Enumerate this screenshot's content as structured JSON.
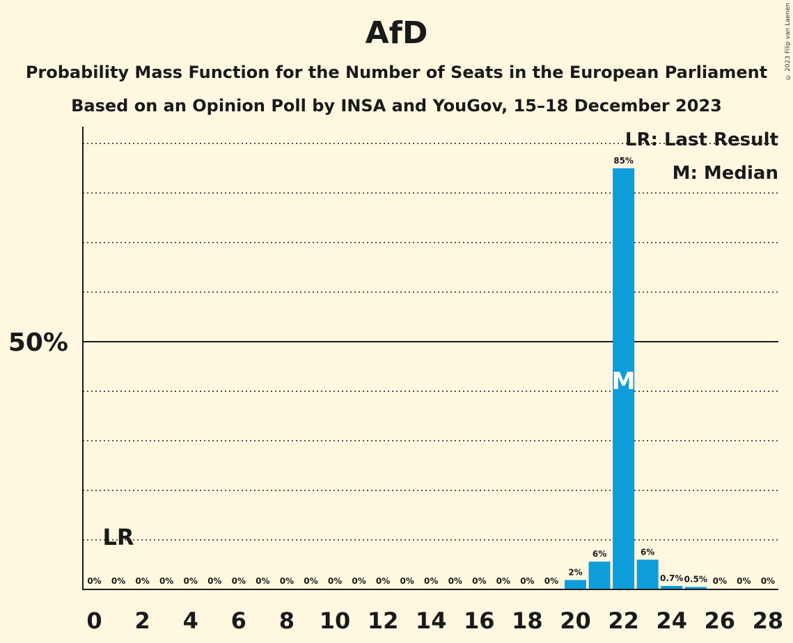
{
  "title": "AfD",
  "subtitle1": "Probability Mass Function for the Number of Seats in the European Parliament",
  "subtitle2": "Based on an Opinion Poll by INSA and YouGov, 15–18 December 2023",
  "copyright": "© 2023 Filip van Laenen",
  "legend": {
    "lr": "LR: Last Result",
    "median": "M: Median"
  },
  "markers": {
    "lr_label": "LR",
    "lr_seat": 1,
    "median_label": "M",
    "median_seat": 22
  },
  "colors": {
    "bar": "#0d9ddb",
    "background": "#fff8e1",
    "text": "#1a1a1a"
  },
  "chart_data": {
    "type": "bar",
    "x": [
      0,
      1,
      2,
      3,
      4,
      5,
      6,
      7,
      8,
      9,
      10,
      11,
      12,
      13,
      14,
      15,
      16,
      17,
      18,
      19,
      20,
      21,
      22,
      23,
      24,
      25,
      26,
      27,
      28
    ],
    "values": [
      0,
      0,
      0,
      0,
      0,
      0,
      0,
      0,
      0,
      0,
      0,
      0,
      0,
      0,
      0,
      0,
      0,
      0,
      0,
      0,
      1.9,
      5.6,
      85,
      6,
      0.7,
      0.5,
      0,
      0,
      0
    ],
    "labels": [
      "0%",
      "0%",
      "0%",
      "0%",
      "0%",
      "0%",
      "0%",
      "0%",
      "0%",
      "0%",
      "0%",
      "0%",
      "0%",
      "0%",
      "0%",
      "0%",
      "0%",
      "0%",
      "0%",
      "0%",
      "2%",
      "6%",
      "85%",
      "6%",
      "0.7%",
      "0.5%",
      "0%",
      "0%",
      "0%"
    ],
    "x_ticks": [
      "0",
      "2",
      "4",
      "6",
      "8",
      "10",
      "12",
      "14",
      "16",
      "18",
      "20",
      "22",
      "24",
      "26",
      "28"
    ],
    "y_tick_label": "50%",
    "y_tick_value": 50,
    "ylim": [
      0,
      92
    ],
    "gridlines": [
      10,
      20,
      30,
      40,
      60,
      70,
      80,
      90
    ],
    "grid": true,
    "legend_position": "top-right"
  }
}
